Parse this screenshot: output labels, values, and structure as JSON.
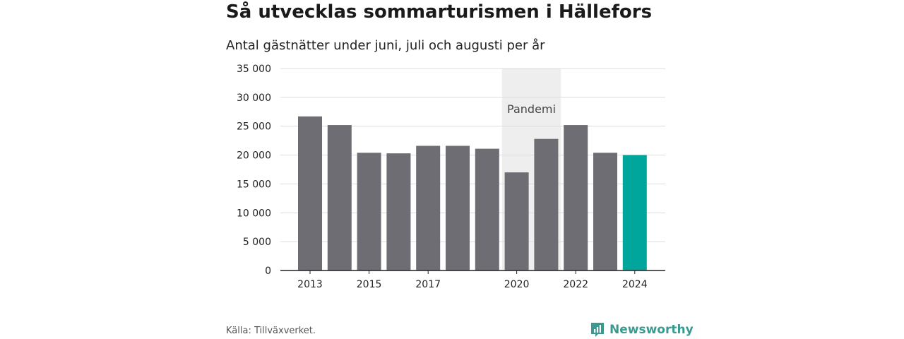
{
  "header": {
    "title": "Så utvecklas sommarturismen i Hällefors",
    "subtitle": "Antal gästnätter under juni, juli och augusti per år"
  },
  "footer": {
    "source": "Källa: Tillväxverket.",
    "brand": "Newsworthy"
  },
  "colors": {
    "bar": "#6e6d74",
    "highlight": "#00a69c",
    "band": "#eeeeee",
    "grid": "#dddddd",
    "brand": "#3a9a91"
  },
  "chart_data": {
    "type": "bar",
    "title": "Så utvecklas sommarturismen i Hällefors",
    "subtitle": "Antal gästnätter under juni, juli och augusti per år",
    "categories": [
      "2013",
      "2014",
      "2015",
      "2016",
      "2017",
      "2018",
      "2019",
      "2020",
      "2021",
      "2022",
      "2023",
      "2024"
    ],
    "values": [
      26700,
      25200,
      20400,
      20300,
      21600,
      21600,
      21100,
      17000,
      22800,
      25200,
      20400,
      20000
    ],
    "highlight_index": 11,
    "xlabel": "",
    "ylabel": "",
    "ylim": [
      0,
      35000
    ],
    "yticks": [
      0,
      5000,
      10000,
      15000,
      20000,
      25000,
      30000,
      35000
    ],
    "ytick_labels": [
      "0",
      "5 000",
      "10 000",
      "15 000",
      "20 000",
      "25 000",
      "30 000",
      "35 000"
    ],
    "xtick_labels": [
      "2013",
      "2015",
      "2017",
      "2020",
      "2022",
      "2024"
    ],
    "annotation": {
      "label": "Pandemi",
      "from": "2020",
      "to": "2021"
    },
    "grid": true,
    "legend": "none"
  }
}
